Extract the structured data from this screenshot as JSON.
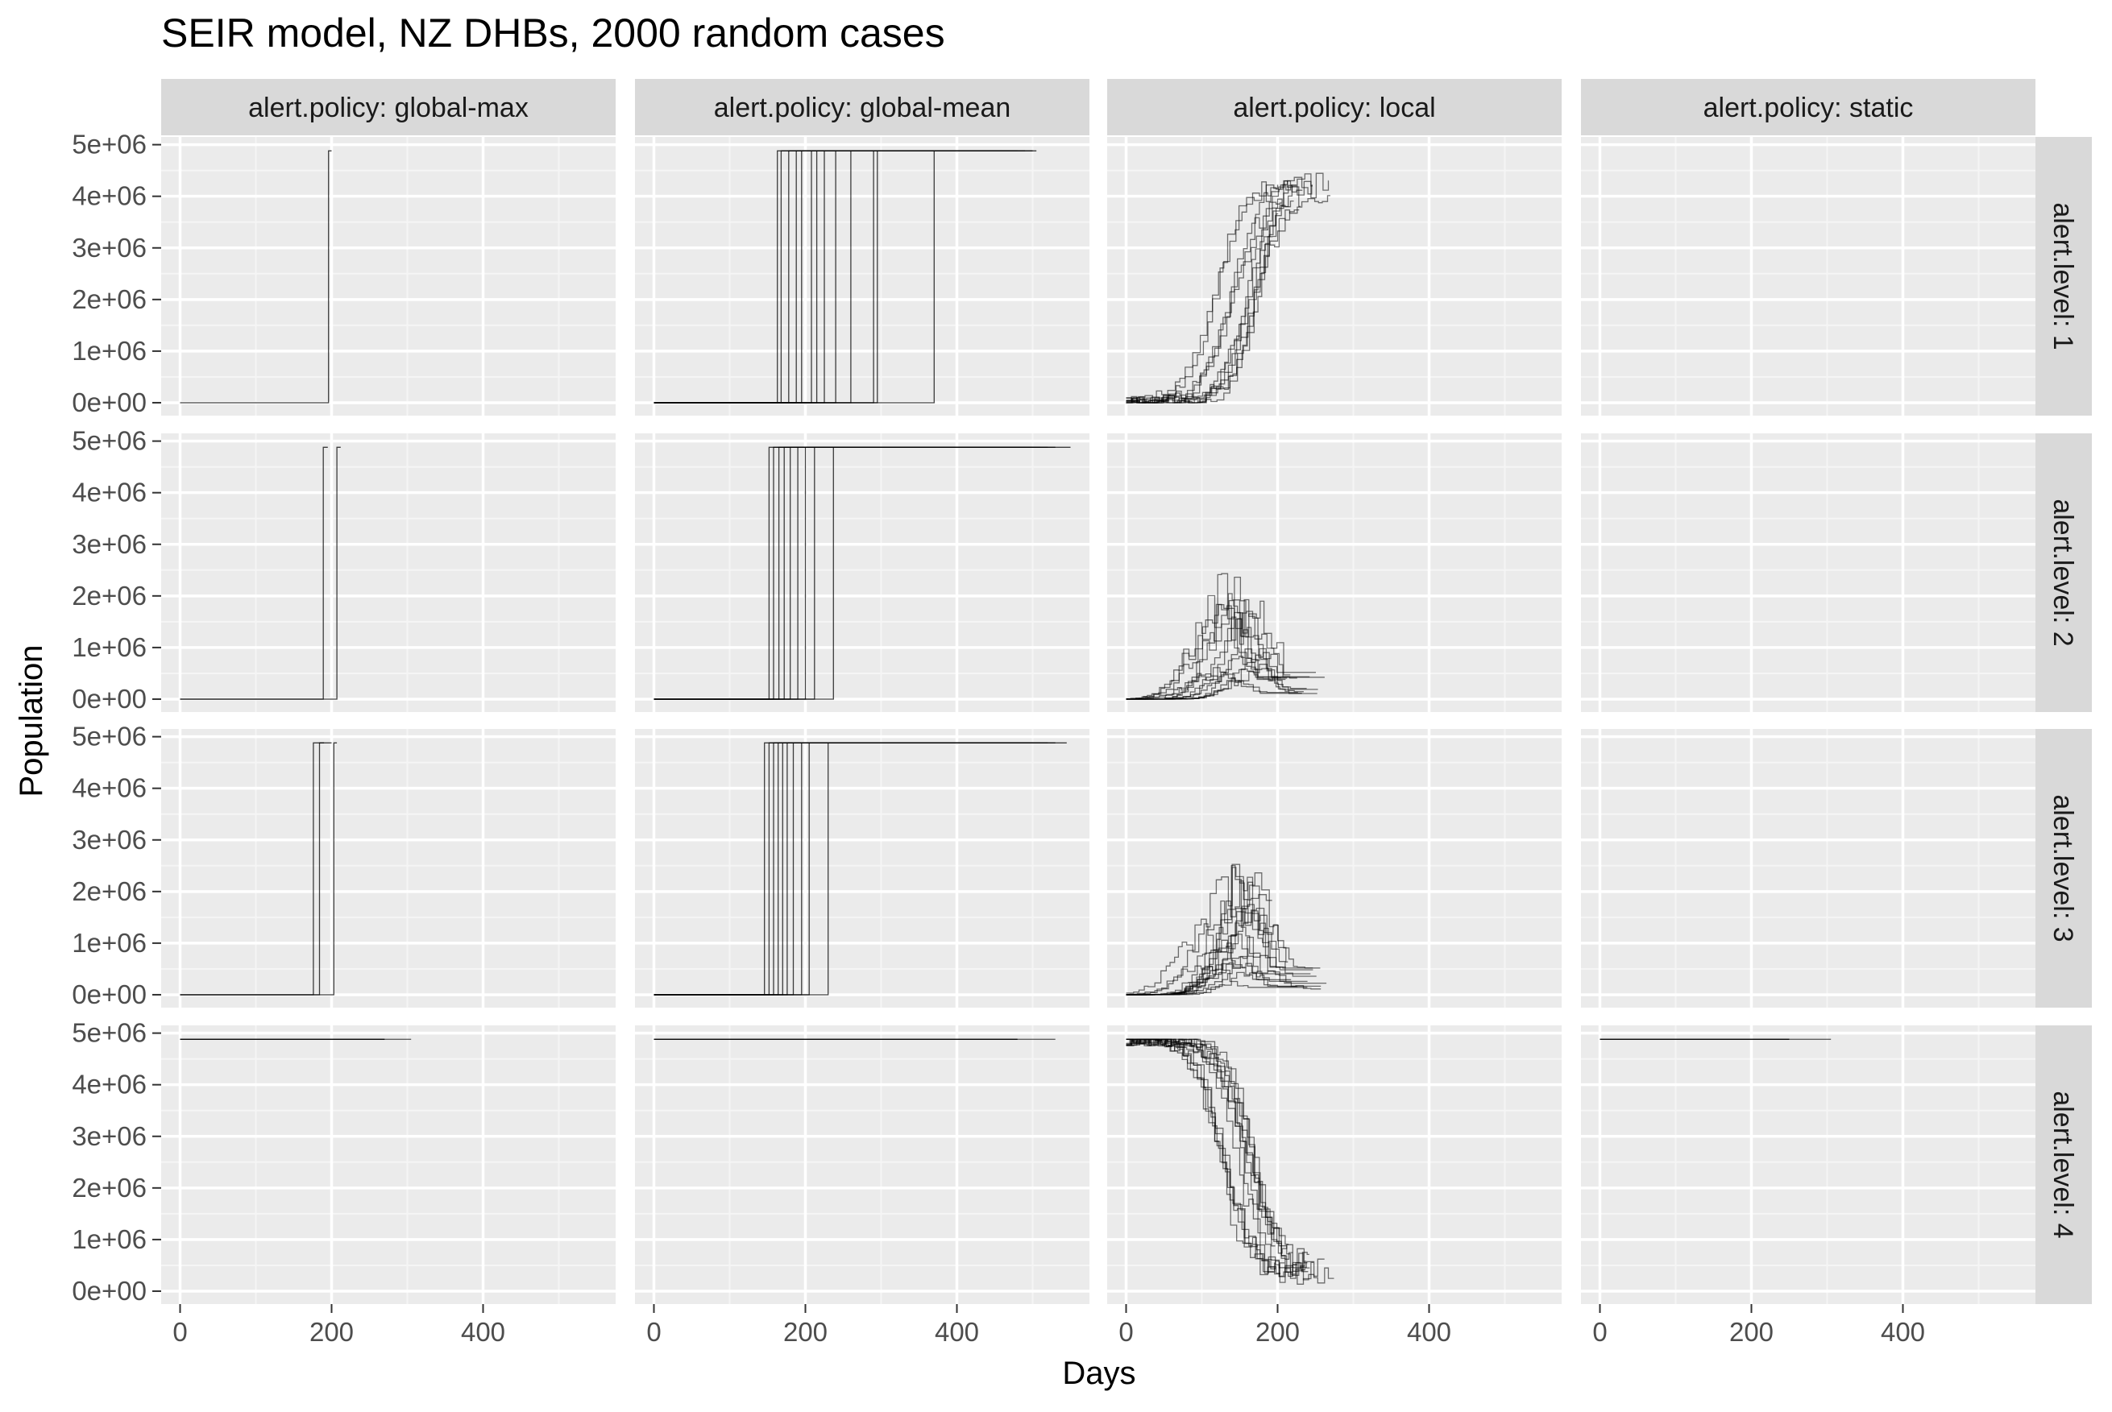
{
  "chart_data": {
    "type": "line",
    "title": "SEIR model, NZ DHBs, 2000 random cases",
    "xlabel": "Days",
    "ylabel": "Population",
    "facet_cols": {
      "prefix": "alert.policy: ",
      "values": [
        "global-max",
        "global-mean",
        "local",
        "static"
      ],
      "labels": [
        "alert.policy: global-max",
        "alert.policy: global-mean",
        "alert.policy: local",
        "alert.policy: static"
      ]
    },
    "facet_rows": {
      "prefix": "alert.level: ",
      "values": [
        "1",
        "2",
        "3",
        "4"
      ],
      "labels": [
        "alert.level: 1",
        "alert.level: 2",
        "alert.level: 3",
        "alert.level: 4"
      ]
    },
    "xlim": [
      -25,
      575
    ],
    "ylim": [
      -250000,
      5150000
    ],
    "x_ticks": [
      0,
      200,
      400
    ],
    "x_tick_labels": [
      "0",
      "200",
      "400"
    ],
    "y_ticks": [
      0,
      1000000,
      2000000,
      3000000,
      4000000,
      5000000
    ],
    "y_tick_labels": [
      "0e+00",
      "1e+06",
      "2e+06",
      "3e+06",
      "4e+06",
      "5e+06"
    ],
    "grid": true,
    "line_color": "#000000",
    "facets": [
      {
        "policy": "global-max",
        "level": "1",
        "kind": "step_up",
        "switch_days": [
          196
        ],
        "end_days": [
          200
        ],
        "top": 4880000
      },
      {
        "policy": "global-mean",
        "level": "1",
        "kind": "step_up",
        "switch_days": [
          163,
          168,
          178,
          188,
          195,
          208,
          215,
          225,
          240,
          260,
          290,
          295,
          370
        ],
        "end_days": [
          505,
          420,
          450,
          480,
          500,
          400,
          460,
          430,
          490,
          440,
          470,
          410,
          450
        ],
        "top": 4880000
      },
      {
        "policy": "local",
        "level": "1",
        "kind": "rise_sigmoid",
        "runs": 12,
        "mid_range": [
          115,
          175
        ],
        "end_days": [
          200,
          270
        ],
        "plateau_range": [
          3700000,
          4800000
        ]
      },
      {
        "policy": "static",
        "level": "1",
        "kind": "none"
      },
      {
        "policy": "global-max",
        "level": "2",
        "kind": "step_up",
        "switch_days": [
          189,
          207
        ],
        "end_days": [
          195,
          212
        ],
        "top": 4880000
      },
      {
        "policy": "global-mean",
        "level": "2",
        "kind": "step_up",
        "switch_days": [
          152,
          158,
          165,
          172,
          180,
          190,
          200,
          212,
          237
        ],
        "end_days": [
          550,
          470,
          500,
          520,
          460,
          490,
          510,
          480,
          530
        ],
        "top": 4880000
      },
      {
        "policy": "local",
        "level": "2",
        "kind": "hump",
        "runs": 14,
        "peak_day_range": [
          110,
          175
        ],
        "peak_range": [
          400000,
          2150000
        ],
        "end_days": [
          180,
          265
        ]
      },
      {
        "policy": "static",
        "level": "2",
        "kind": "none"
      },
      {
        "policy": "global-max",
        "level": "3",
        "kind": "step_up",
        "switch_days": [
          176,
          184,
          203
        ],
        "end_days": [
          190,
          200,
          207
        ],
        "top": 4880000
      },
      {
        "policy": "global-mean",
        "level": "3",
        "kind": "step_up",
        "switch_days": [
          146,
          152,
          158,
          164,
          170,
          176,
          184,
          195,
          205,
          230
        ],
        "end_days": [
          545,
          470,
          500,
          520,
          460,
          490,
          510,
          480,
          530,
          500
        ],
        "top": 4880000
      },
      {
        "policy": "local",
        "level": "3",
        "kind": "hump",
        "runs": 16,
        "peak_day_range": [
          100,
          180
        ],
        "peak_range": [
          400000,
          2200000
        ],
        "end_days": [
          180,
          270
        ]
      },
      {
        "policy": "static",
        "level": "3",
        "kind": "none"
      },
      {
        "policy": "global-max",
        "level": "4",
        "kind": "flat",
        "value": 4880000,
        "end_days": [
          270,
          305
        ]
      },
      {
        "policy": "global-mean",
        "level": "4",
        "kind": "flat",
        "value": 4880000,
        "end_days": [
          480,
          530
        ]
      },
      {
        "policy": "local",
        "level": "4",
        "kind": "fall_sigmoid",
        "runs": 14,
        "mid_range": [
          115,
          170
        ],
        "end_days": [
          190,
          275
        ],
        "floor_range": [
          100000,
          600000
        ]
      },
      {
        "policy": "static",
        "level": "4",
        "kind": "flat",
        "value": 4880000,
        "end_days": [
          250,
          305
        ]
      }
    ]
  }
}
